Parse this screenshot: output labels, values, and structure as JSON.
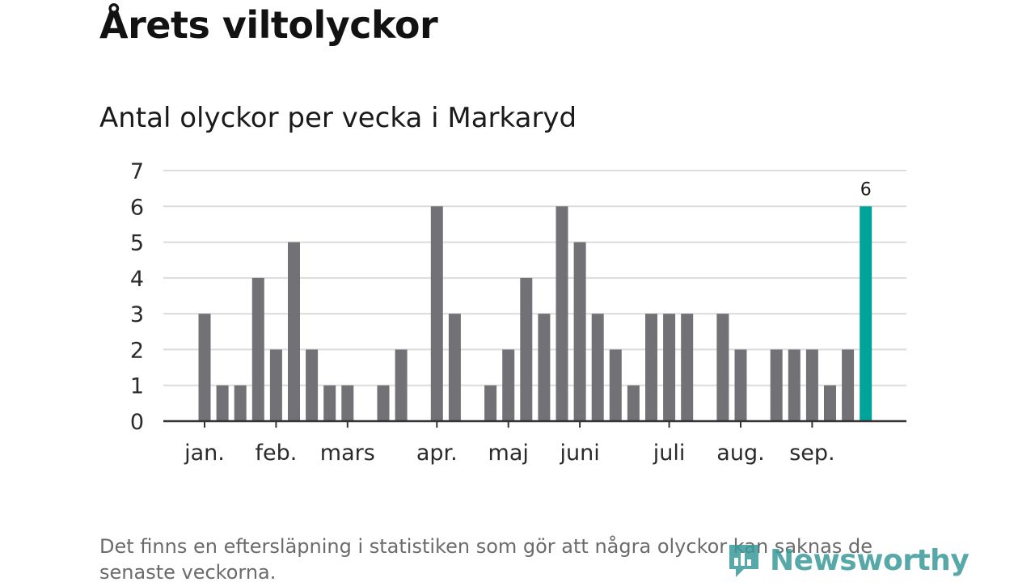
{
  "title": "Årets viltolyckor",
  "subtitle": "Antal olyckor per vecka i Markaryd",
  "footnote": "Det finns en eftersläpning i statistiken som gör att några olyckor kan saknas de senaste veckorna.",
  "logo_text": "Newsworthy",
  "colors": {
    "bar": "#727176",
    "highlight": "#00a39a",
    "grid": "#dcdcdc",
    "axis": "#333333",
    "text": "#1a1a1a",
    "logo": "#3a9a9a"
  },
  "chart_data": {
    "type": "bar",
    "title": "Antal olyckor per vecka i Markaryd",
    "xlabel": "",
    "ylabel": "",
    "ylim": [
      0,
      7
    ],
    "y_ticks": [
      0,
      1,
      2,
      3,
      4,
      5,
      6,
      7
    ],
    "grid": true,
    "x_ticks": [
      {
        "label": "jan.",
        "week": 1
      },
      {
        "label": "feb.",
        "week": 5
      },
      {
        "label": "mars",
        "week": 9
      },
      {
        "label": "apr.",
        "week": 14
      },
      {
        "label": "maj",
        "week": 18
      },
      {
        "label": "juni",
        "week": 22
      },
      {
        "label": "juli",
        "week": 27
      },
      {
        "label": "aug.",
        "week": 31
      },
      {
        "label": "sep.",
        "week": 35
      }
    ],
    "weeks": [
      1,
      2,
      3,
      4,
      5,
      6,
      7,
      8,
      9,
      10,
      11,
      12,
      13,
      14,
      15,
      16,
      17,
      18,
      19,
      20,
      21,
      22,
      23,
      24,
      25,
      26,
      27,
      28,
      29,
      30,
      31,
      32,
      33,
      34,
      35,
      36,
      37,
      38
    ],
    "values": [
      3,
      1,
      1,
      4,
      2,
      5,
      2,
      1,
      1,
      0,
      1,
      2,
      0,
      6,
      3,
      0,
      1,
      2,
      4,
      3,
      6,
      5,
      3,
      2,
      1,
      3,
      3,
      3,
      0,
      3,
      2,
      0,
      2,
      2,
      2,
      1,
      2,
      6
    ],
    "highlight_index": 37,
    "highlight_label": "6"
  }
}
